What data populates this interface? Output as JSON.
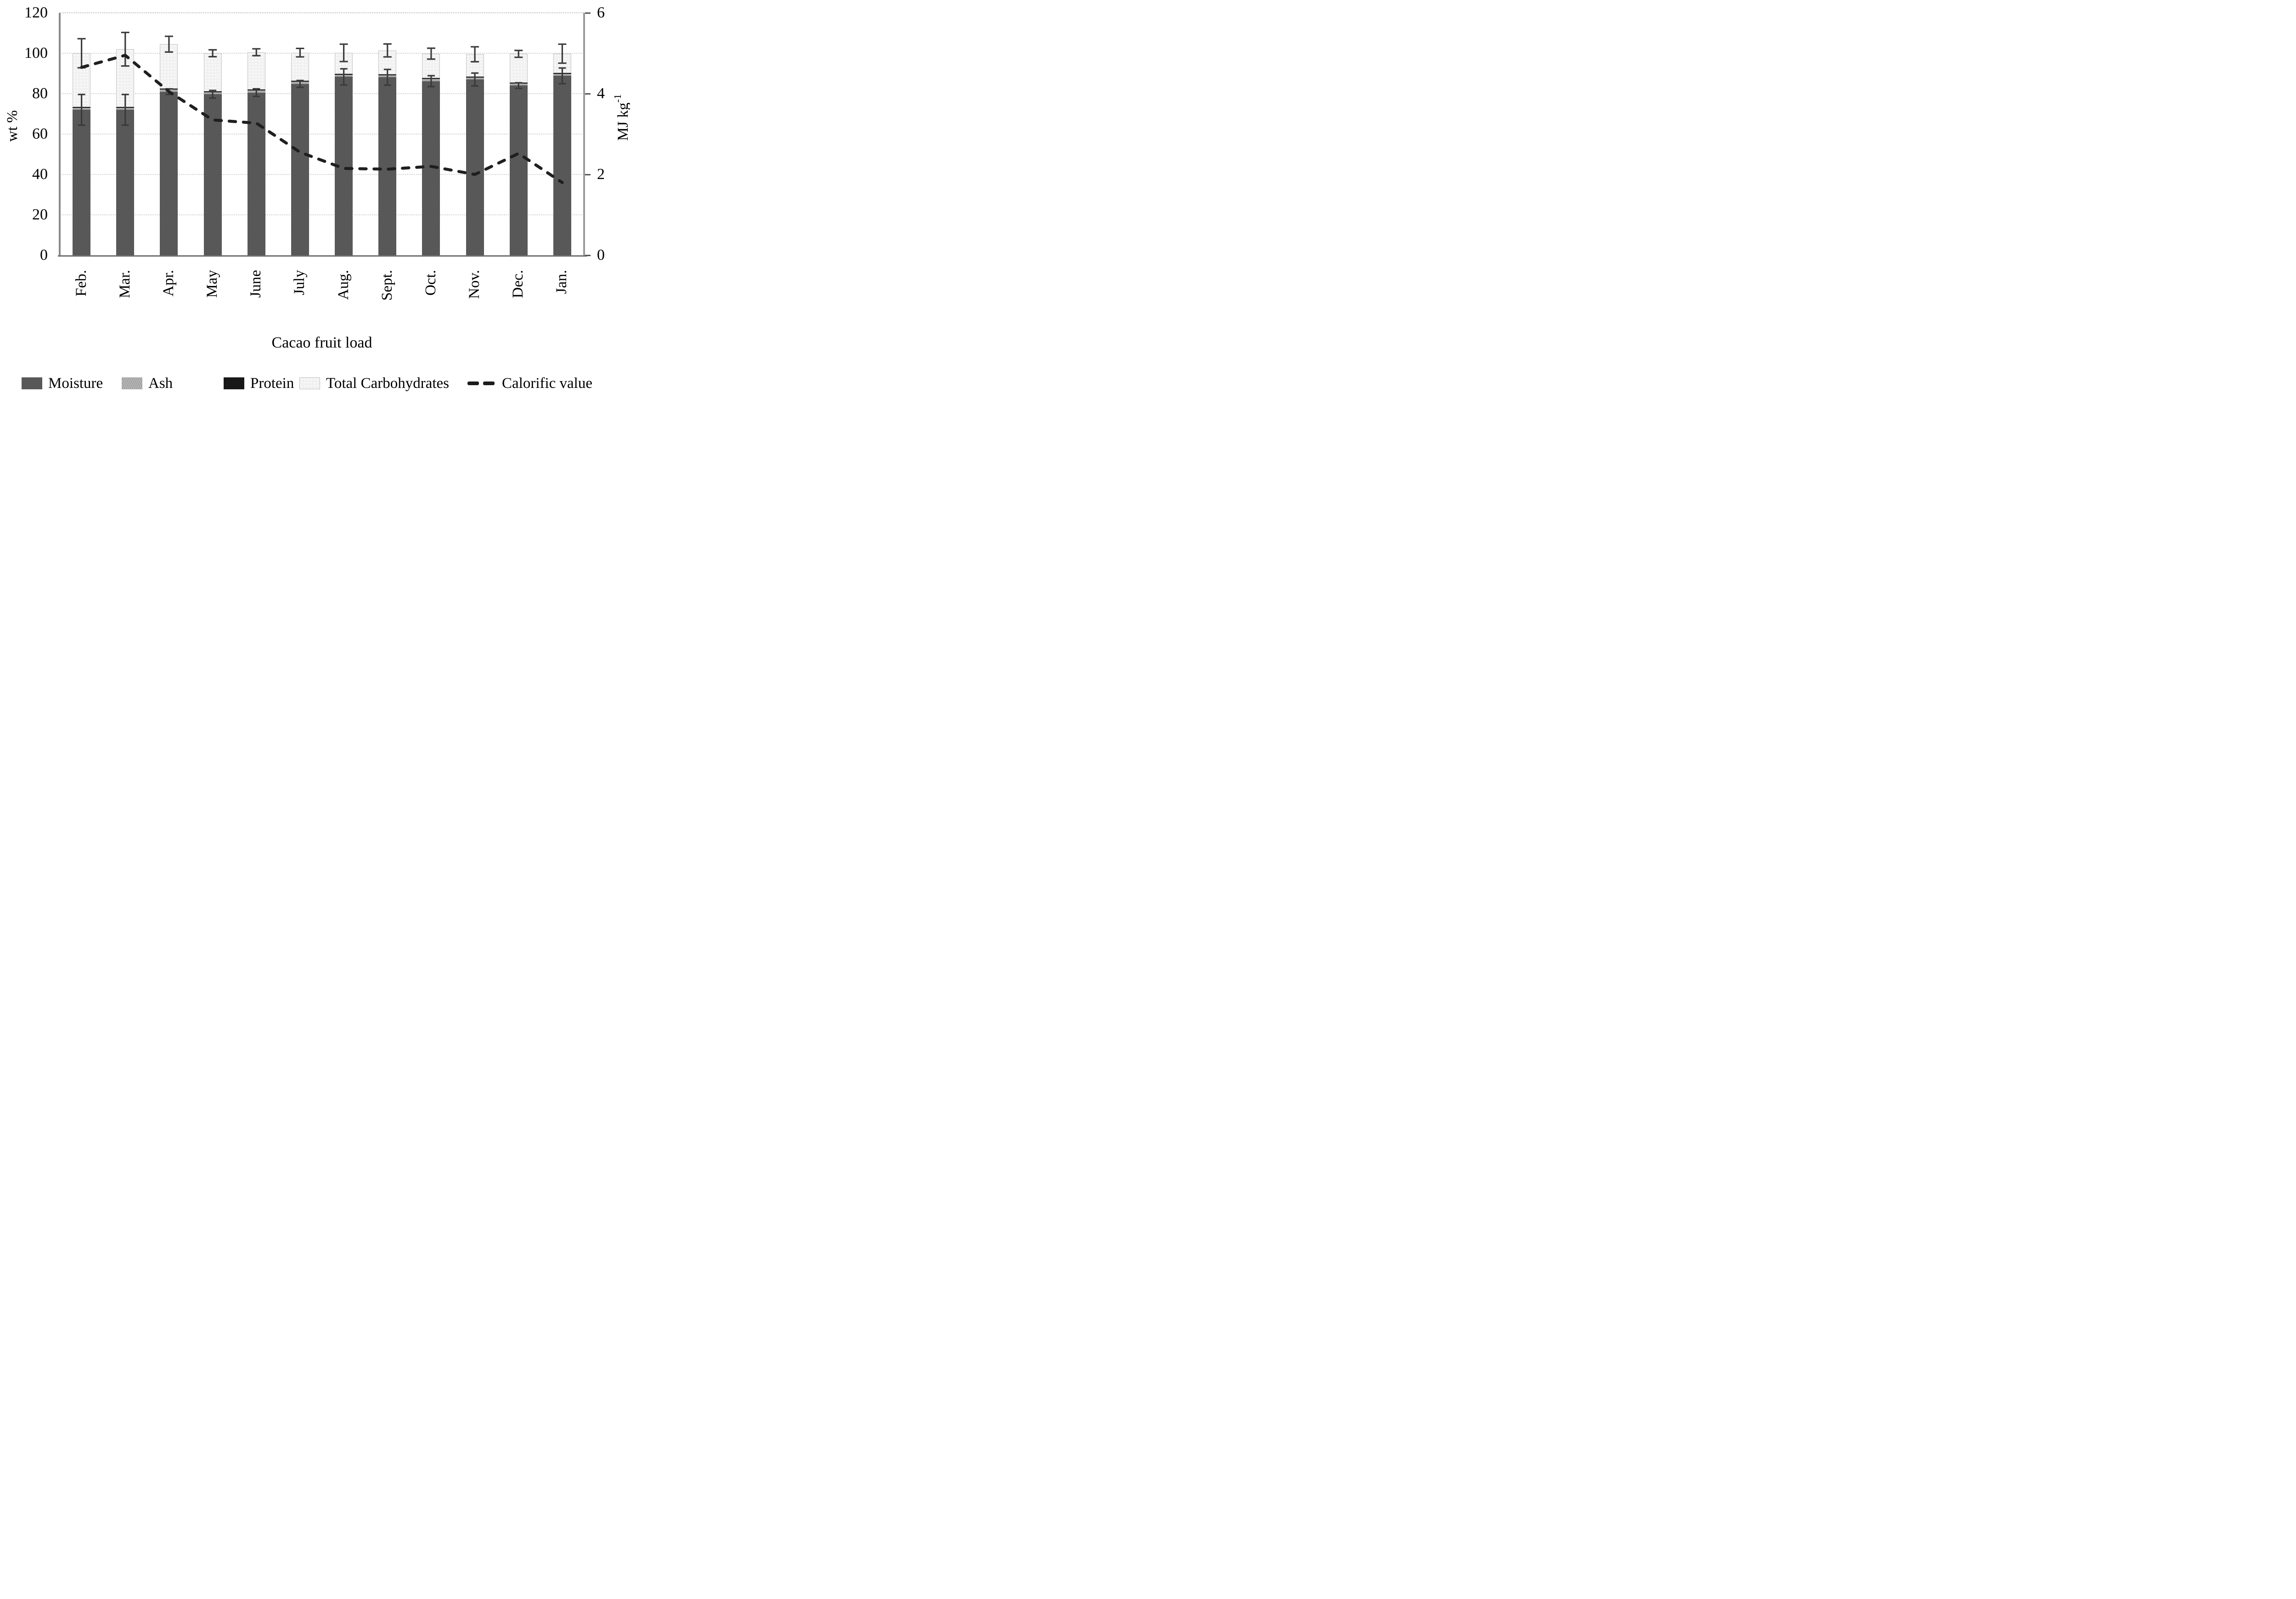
{
  "figure": {
    "x_axis_title": "Cacao fruit load",
    "left_axis_title": "wt %",
    "right_axis_title_base": "MJ kg",
    "right_axis_title_exp": "-1"
  },
  "legend": {
    "items": [
      {
        "label": "Moisture",
        "swatch": "moisture"
      },
      {
        "label": "Ash",
        "swatch": "ash"
      },
      {
        "label": "Protein",
        "swatch": "protein"
      },
      {
        "label": "Total Carbohydrates",
        "swatch": "carb"
      },
      {
        "label": "Calorific value",
        "swatch": "line"
      }
    ]
  },
  "colors": {
    "moisture": "#545454",
    "ash": "#a8a8a8",
    "protein": "#181818",
    "carbohydrates": "#f1f1f1",
    "carb_border": "#c4c4c4",
    "calorific_line": "#1f1f1f",
    "grid": "#cfcfcf",
    "axis": "#8a8a8a",
    "error_bar": "#3a3a3a"
  },
  "chart_data": {
    "type": "bar",
    "subtype": "stacked-bars-with-secondary-line",
    "title": "",
    "xlabel": "Cacao fruit load",
    "categories": [
      "Feb.",
      "Mar.",
      "Apr.",
      "May",
      "June",
      "July",
      "Aug.",
      "Sept.",
      "Oct.",
      "Nov.",
      "Dec.",
      "Jan."
    ],
    "series": [
      {
        "name": "Moisture",
        "values": [
          72.0,
          72.0,
          81.0,
          79.7,
          80.5,
          84.8,
          88.3,
          88.1,
          86.2,
          87.0,
          84.0,
          88.8
        ]
      },
      {
        "name": "Ash",
        "values": [
          1.0,
          1.0,
          1.0,
          1.0,
          1.0,
          1.0,
          1.0,
          1.0,
          1.0,
          1.0,
          1.0,
          1.0
        ]
      },
      {
        "name": "Protein",
        "values": [
          0.5,
          0.5,
          0.5,
          0.5,
          0.5,
          0.5,
          0.5,
          0.5,
          0.5,
          0.5,
          0.5,
          0.5
        ]
      },
      {
        "name": "Total Carbohydrates",
        "values": [
          26.5,
          28.5,
          22.0,
          18.8,
          18.5,
          14.0,
          10.4,
          11.8,
          12.1,
          11.0,
          14.2,
          9.5
        ]
      }
    ],
    "stack_totals": [
      100.0,
      102.0,
      104.5,
      100.0,
      100.5,
      100.3,
      100.2,
      101.4,
      99.8,
      99.5,
      99.7,
      99.8
    ],
    "total_error": [
      7.2,
      8.3,
      3.9,
      1.7,
      1.7,
      2.1,
      4.3,
      3.2,
      2.7,
      3.7,
      1.7,
      4.7
    ],
    "moisture_error": [
      7.6,
      7.6,
      1.4,
      1.9,
      1.9,
      1.7,
      4.0,
      3.9,
      2.7,
      3.2,
      1.4,
      3.9
    ],
    "line_series": {
      "name": "Calorific value",
      "values": [
        4.65,
        4.95,
        4.05,
        3.35,
        3.27,
        2.55,
        2.15,
        2.13,
        2.2,
        2.0,
        2.52,
        1.8
      ]
    },
    "left_axis": {
      "label": "wt %",
      "min": 0,
      "max": 120,
      "ticks": [
        0,
        20,
        40,
        60,
        80,
        100,
        120
      ]
    },
    "right_axis": {
      "label": "MJ kg-1",
      "min": 0,
      "max": 6,
      "ticks": [
        0,
        2,
        4,
        6
      ]
    },
    "grid": true,
    "legend_position": "bottom"
  }
}
